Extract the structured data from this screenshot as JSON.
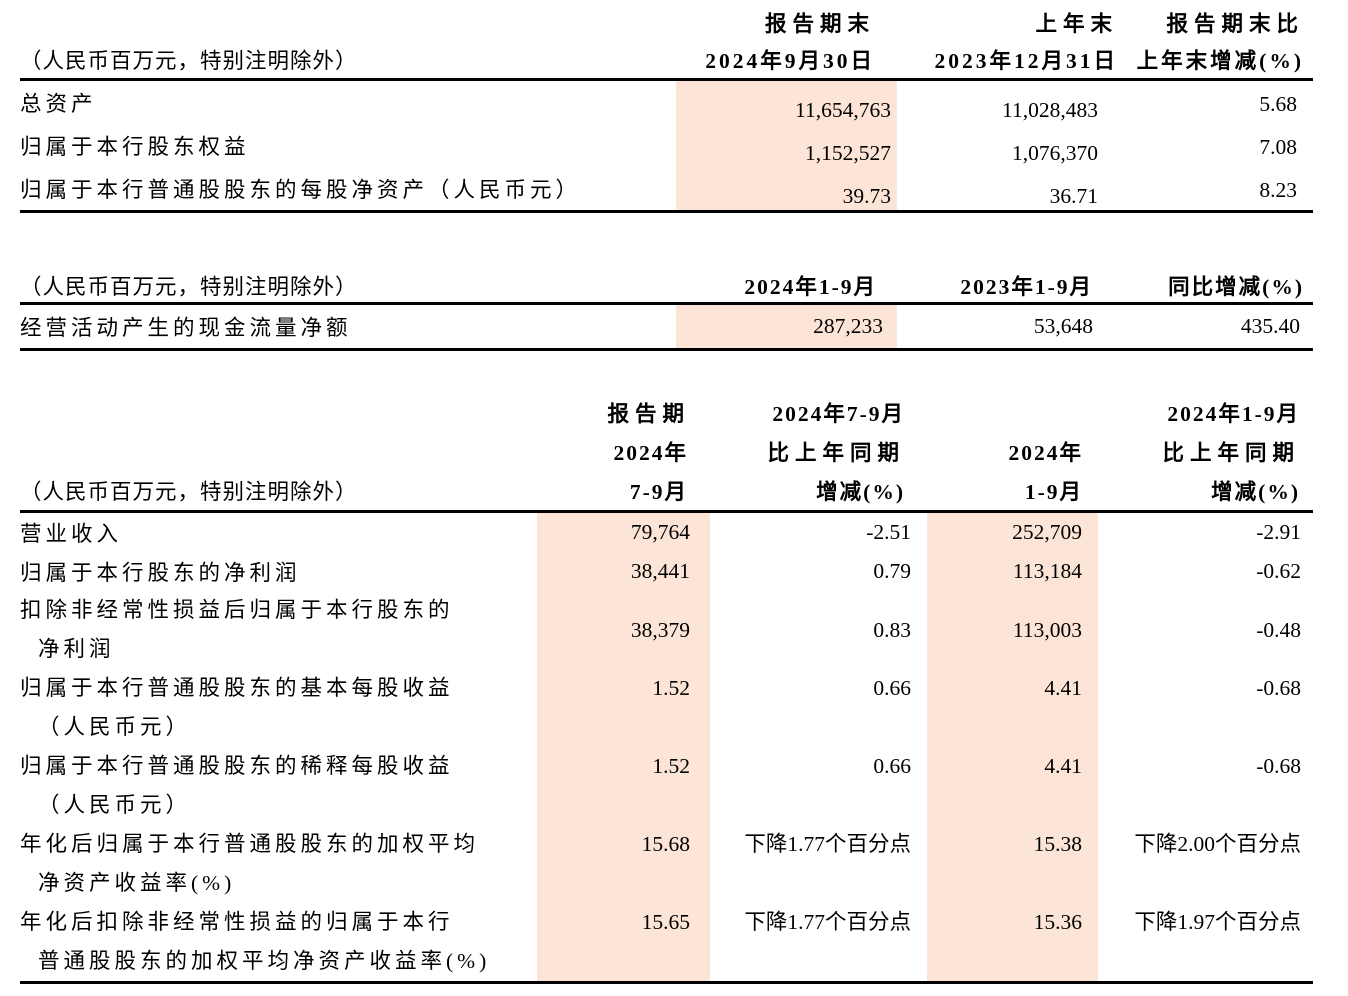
{
  "page": {
    "background": "#ffffff",
    "text_color": "#000000",
    "highlight_color": "#fce4d6",
    "unit_note": "（人民币百万元，特别注明除外）"
  },
  "table1": {
    "unit_note": "（人民币百万元，特别注明除外）",
    "headers": {
      "current": {
        "line1": "报告期末",
        "line2": "2024年9月30日"
      },
      "prior": {
        "line1": "上年末",
        "line2": "2023年12月31日"
      },
      "change": {
        "line1": "报告期末比",
        "line2": "上年末增减(%)"
      }
    },
    "rows": [
      {
        "label": "总资产",
        "current": "11,654,763",
        "prior": "11,028,483",
        "change": "5.68"
      },
      {
        "label": "归属于本行股东权益",
        "current": "1,152,527",
        "prior": "1,076,370",
        "change": "7.08"
      },
      {
        "label": "归属于本行普通股股东的每股净资产（人民币元）",
        "current": "39.73",
        "prior": "36.71",
        "change": "8.23"
      }
    ]
  },
  "table2": {
    "unit_note": "（人民币百万元，特别注明除外）",
    "headers": {
      "current": "2024年1-9月",
      "prior": "2023年1-9月",
      "change": "同比增减(%)"
    },
    "rows": [
      {
        "label": "经营活动产生的现金流量净额",
        "current": "287,233",
        "prior": "53,648",
        "change": "435.40"
      }
    ]
  },
  "table3": {
    "unit_note": "（人民币百万元，特别注明除外）",
    "headers": {
      "q3": {
        "line1": "报告期",
        "line2": "2024年",
        "line3": "7-9月"
      },
      "q3_change": {
        "line1": "2024年7-9月",
        "line2": "比上年同期",
        "line3": "增减(%)"
      },
      "ytd": {
        "line1": "",
        "line2": "2024年",
        "line3": "1-9月"
      },
      "ytd_change": {
        "line1": "2024年1-9月",
        "line2": "比上年同期",
        "line3": "增减(%)"
      }
    },
    "rows": [
      {
        "label_lines": [
          "营业收入"
        ],
        "q3": "79,764",
        "q3_change": "-2.51",
        "ytd": "252,709",
        "ytd_change": "-2.91"
      },
      {
        "label_lines": [
          "归属于本行股东的净利润"
        ],
        "q3": "38,441",
        "q3_change": "0.79",
        "ytd": "113,184",
        "ytd_change": "-0.62"
      },
      {
        "label_lines": [
          "扣除非经常性损益后归属于本行股东的",
          "净利润"
        ],
        "q3": "38,379",
        "q3_change": "0.83",
        "ytd": "113,003",
        "ytd_change": "-0.48"
      },
      {
        "label_lines": [
          "归属于本行普通股股东的基本每股收益",
          "（人民币元）"
        ],
        "q3": "1.52",
        "q3_change": "0.66",
        "ytd": "4.41",
        "ytd_change": "-0.68"
      },
      {
        "label_lines": [
          "归属于本行普通股股东的稀释每股收益",
          "（人民币元）"
        ],
        "q3": "1.52",
        "q3_change": "0.66",
        "ytd": "4.41",
        "ytd_change": "-0.68"
      },
      {
        "label_lines": [
          "年化后归属于本行普通股股东的加权平均",
          "净资产收益率(%)"
        ],
        "q3": "15.68",
        "q3_change": "下降1.77个百分点",
        "ytd": "15.38",
        "ytd_change": "下降2.00个百分点"
      },
      {
        "label_lines": [
          "年化后扣除非经常性损益的归属于本行",
          "普通股股东的加权平均净资产收益率(%)"
        ],
        "q3": "15.65",
        "q3_change": "下降1.77个百分点",
        "ytd": "15.36",
        "ytd_change": "下降1.97个百分点"
      }
    ]
  }
}
